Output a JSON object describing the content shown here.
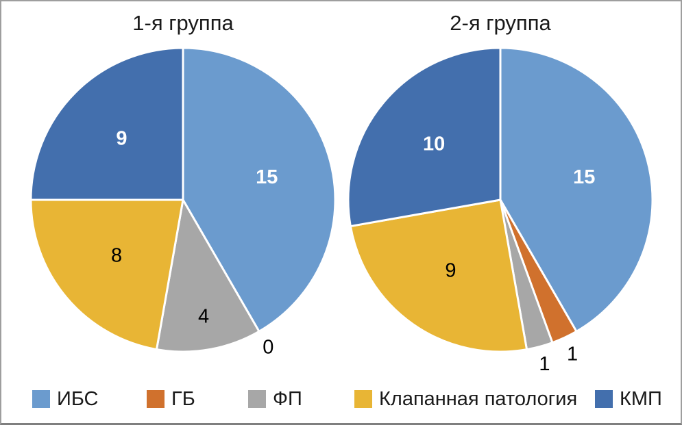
{
  "figure": {
    "background": "#ffffff",
    "border_color": "#9e9e9e"
  },
  "chart_data": [
    {
      "type": "pie",
      "title": "1-я группа",
      "categories": [
        "ИБС",
        "ГБ",
        "ФП",
        "Клапанная патология",
        "КМП"
      ],
      "values": [
        15,
        0,
        4,
        8,
        9
      ],
      "total": 36,
      "start_angle_deg": 0,
      "direction": "clockwise",
      "data_labels": "values",
      "legend_position": "bottom"
    },
    {
      "type": "pie",
      "title": "2-я группа",
      "categories": [
        "ИБС",
        "ГБ",
        "ФП",
        "Клапанная патология",
        "КМП"
      ],
      "values": [
        15,
        1,
        1,
        9,
        10
      ],
      "total": 36,
      "start_angle_deg": 0,
      "direction": "clockwise",
      "data_labels": "values",
      "legend_position": "bottom"
    }
  ],
  "legend": {
    "items": [
      {
        "label": "ИБС",
        "color": "#6b9bce",
        "value_label_color": "#ffffff",
        "value_label_bold": true
      },
      {
        "label": "ГБ",
        "color": "#d0712d",
        "value_label_color": "#000000",
        "value_label_bold": false
      },
      {
        "label": "ФП",
        "color": "#a7a7a7",
        "value_label_color": "#000000",
        "value_label_bold": false
      },
      {
        "label": "Клапанная патология",
        "color": "#e8b535",
        "value_label_color": "#000000",
        "value_label_bold": false
      },
      {
        "label": "КМП",
        "color": "#436fad",
        "value_label_color": "#ffffff",
        "value_label_bold": true
      }
    ]
  },
  "slice_label_colors": {
    "inside_dark": "#000000",
    "outside": "#000000"
  }
}
